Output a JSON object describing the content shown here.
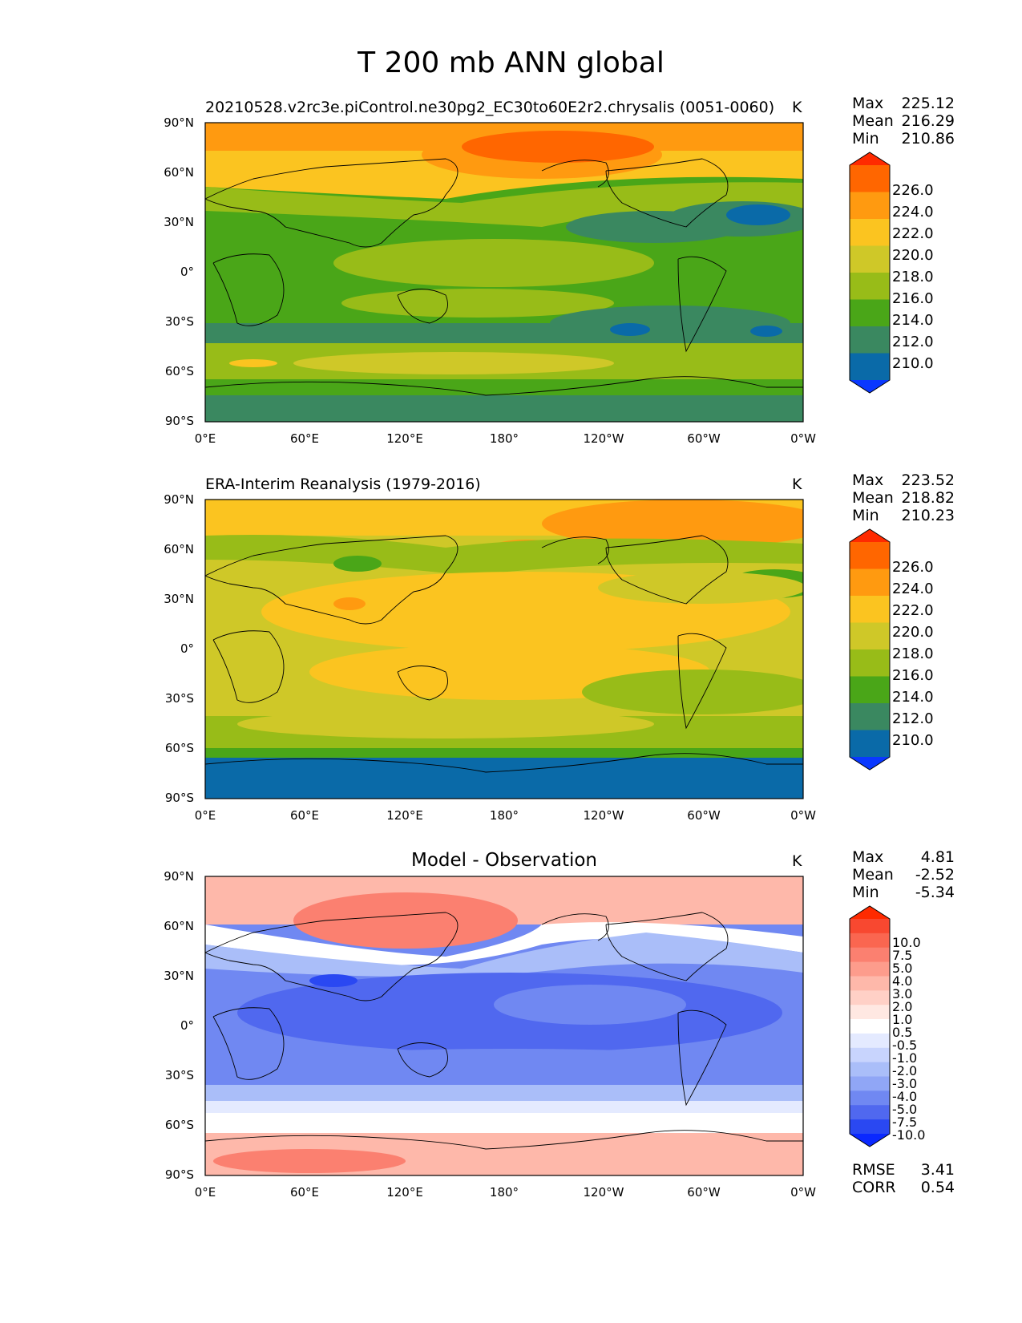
{
  "figure": {
    "title": "T 200 mb ANN global"
  },
  "axes": {
    "lat_labels": [
      "90°N",
      "60°N",
      "30°N",
      "0°",
      "30°S",
      "60°S",
      "90°S"
    ],
    "lon_labels": [
      "0°E",
      "60°E",
      "120°E",
      "180°",
      "120°W",
      "60°W",
      "0°W"
    ]
  },
  "panels": [
    {
      "title": "20210528.v2rc3e.piControl.ne30pg2_EC30to60E2r2.chrysalis (0051-0060)",
      "units": "K",
      "stats": {
        "max_label": "Max",
        "max": "225.12",
        "mean_label": "Mean",
        "mean": "216.29",
        "min_label": "Min",
        "min": "210.86"
      },
      "colorbar": {
        "levels": [
          "226.0",
          "224.0",
          "222.0",
          "220.0",
          "218.0",
          "216.0",
          "214.0",
          "212.0",
          "210.0"
        ],
        "colors": [
          "#ff2a00",
          "#ff6600",
          "#ff9a10",
          "#fbc420",
          "#cfc828",
          "#98bc18",
          "#4aa618",
          "#3a8860",
          "#0a6aa8",
          "#0a38ff"
        ]
      }
    },
    {
      "title": "ERA-Interim Reanalysis (1979-2016)",
      "units": "K",
      "stats": {
        "max_label": "Max",
        "max": "223.52",
        "mean_label": "Mean",
        "mean": "218.82",
        "min_label": "Min",
        "min": "210.23"
      },
      "colorbar": {
        "levels": [
          "226.0",
          "224.0",
          "222.0",
          "220.0",
          "218.0",
          "216.0",
          "214.0",
          "212.0",
          "210.0"
        ],
        "colors": [
          "#ff2a00",
          "#ff6600",
          "#ff9a10",
          "#fbc420",
          "#cfc828",
          "#98bc18",
          "#4aa618",
          "#3a8860",
          "#0a6aa8",
          "#0a38ff"
        ]
      }
    },
    {
      "title": "Model - Observation",
      "units": "K",
      "stats": {
        "max_label": "Max",
        "max": "4.81",
        "mean_label": "Mean",
        "mean": "-2.52",
        "min_label": "Min",
        "min": "-5.34"
      },
      "colorbar": {
        "levels": [
          "10.0",
          "7.5",
          "5.0",
          "4.0",
          "3.0",
          "2.0",
          "1.0",
          "0.5",
          "-0.5",
          "-1.0",
          "-2.0",
          "-3.0",
          "-4.0",
          "-5.0",
          "-7.5",
          "-10.0"
        ],
        "colors": [
          "#ff2a00",
          "#f84830",
          "#fa6650",
          "#fb8070",
          "#fd9c8c",
          "#feb8aa",
          "#ffd0c6",
          "#ffe8e2",
          "#ffffff",
          "#e4eaff",
          "#c8d4fd",
          "#aabef9",
          "#90a6f6",
          "#7088f2",
          "#5068ef",
          "#2a48f2",
          "#0a28ff"
        ]
      },
      "metrics": {
        "rmse_label": "RMSE",
        "rmse": "3.41",
        "corr_label": "CORR",
        "corr": "0.54"
      }
    }
  ],
  "chart_data": [
    {
      "type": "heatmap",
      "title": "20210528.v2rc3e.piControl.ne30pg2_EC30to60E2r2.chrysalis (0051-0060)",
      "variable": "T 200 mb ANN global",
      "units": "K",
      "xlim": [
        0,
        360
      ],
      "ylim": [
        -90,
        90
      ],
      "max": 225.12,
      "mean": 216.29,
      "min": 210.86,
      "contour_levels": [
        210,
        212,
        214,
        216,
        218,
        220,
        222,
        224,
        226
      ],
      "zonal_mean_profile": {
        "lat": [
          80,
          60,
          45,
          30,
          15,
          0,
          -15,
          -30,
          -45,
          -60,
          -75,
          -85
        ],
        "value": [
          222.5,
          221,
          217.5,
          216,
          217,
          217.5,
          216.5,
          214.5,
          214,
          218,
          215,
          214
        ]
      }
    },
    {
      "type": "heatmap",
      "title": "ERA-Interim Reanalysis (1979-2016)",
      "units": "K",
      "xlim": [
        0,
        360
      ],
      "ylim": [
        -90,
        90
      ],
      "max": 223.52,
      "mean": 218.82,
      "min": 210.23,
      "contour_levels": [
        210,
        212,
        214,
        216,
        218,
        220,
        222,
        224,
        226
      ],
      "zonal_mean_profile": {
        "lat": [
          80,
          60,
          45,
          30,
          15,
          0,
          -15,
          -30,
          -45,
          -60,
          -75,
          -85
        ],
        "value": [
          221,
          219.5,
          217.5,
          219,
          220.5,
          220,
          220,
          218,
          217,
          218,
          213,
          211.5
        ]
      }
    },
    {
      "type": "heatmap",
      "title": "Model - Observation",
      "units": "K",
      "xlim": [
        0,
        360
      ],
      "ylim": [
        -90,
        90
      ],
      "max": 4.81,
      "mean": -2.52,
      "min": -5.34,
      "rmse": 3.41,
      "corr": 0.54,
      "contour_levels": [
        -10,
        -7.5,
        -5,
        -4,
        -3,
        -2,
        -1,
        -0.5,
        0.5,
        1,
        2,
        3,
        4,
        5,
        7.5,
        10
      ],
      "zonal_mean_profile": {
        "lat": [
          80,
          60,
          45,
          30,
          15,
          0,
          -15,
          -30,
          -45,
          -60,
          -75,
          -85
        ],
        "value": [
          1.5,
          3,
          0,
          -3,
          -3.5,
          -3.5,
          -3.5,
          -3.5,
          -3,
          0,
          2,
          2.5
        ]
      }
    }
  ]
}
